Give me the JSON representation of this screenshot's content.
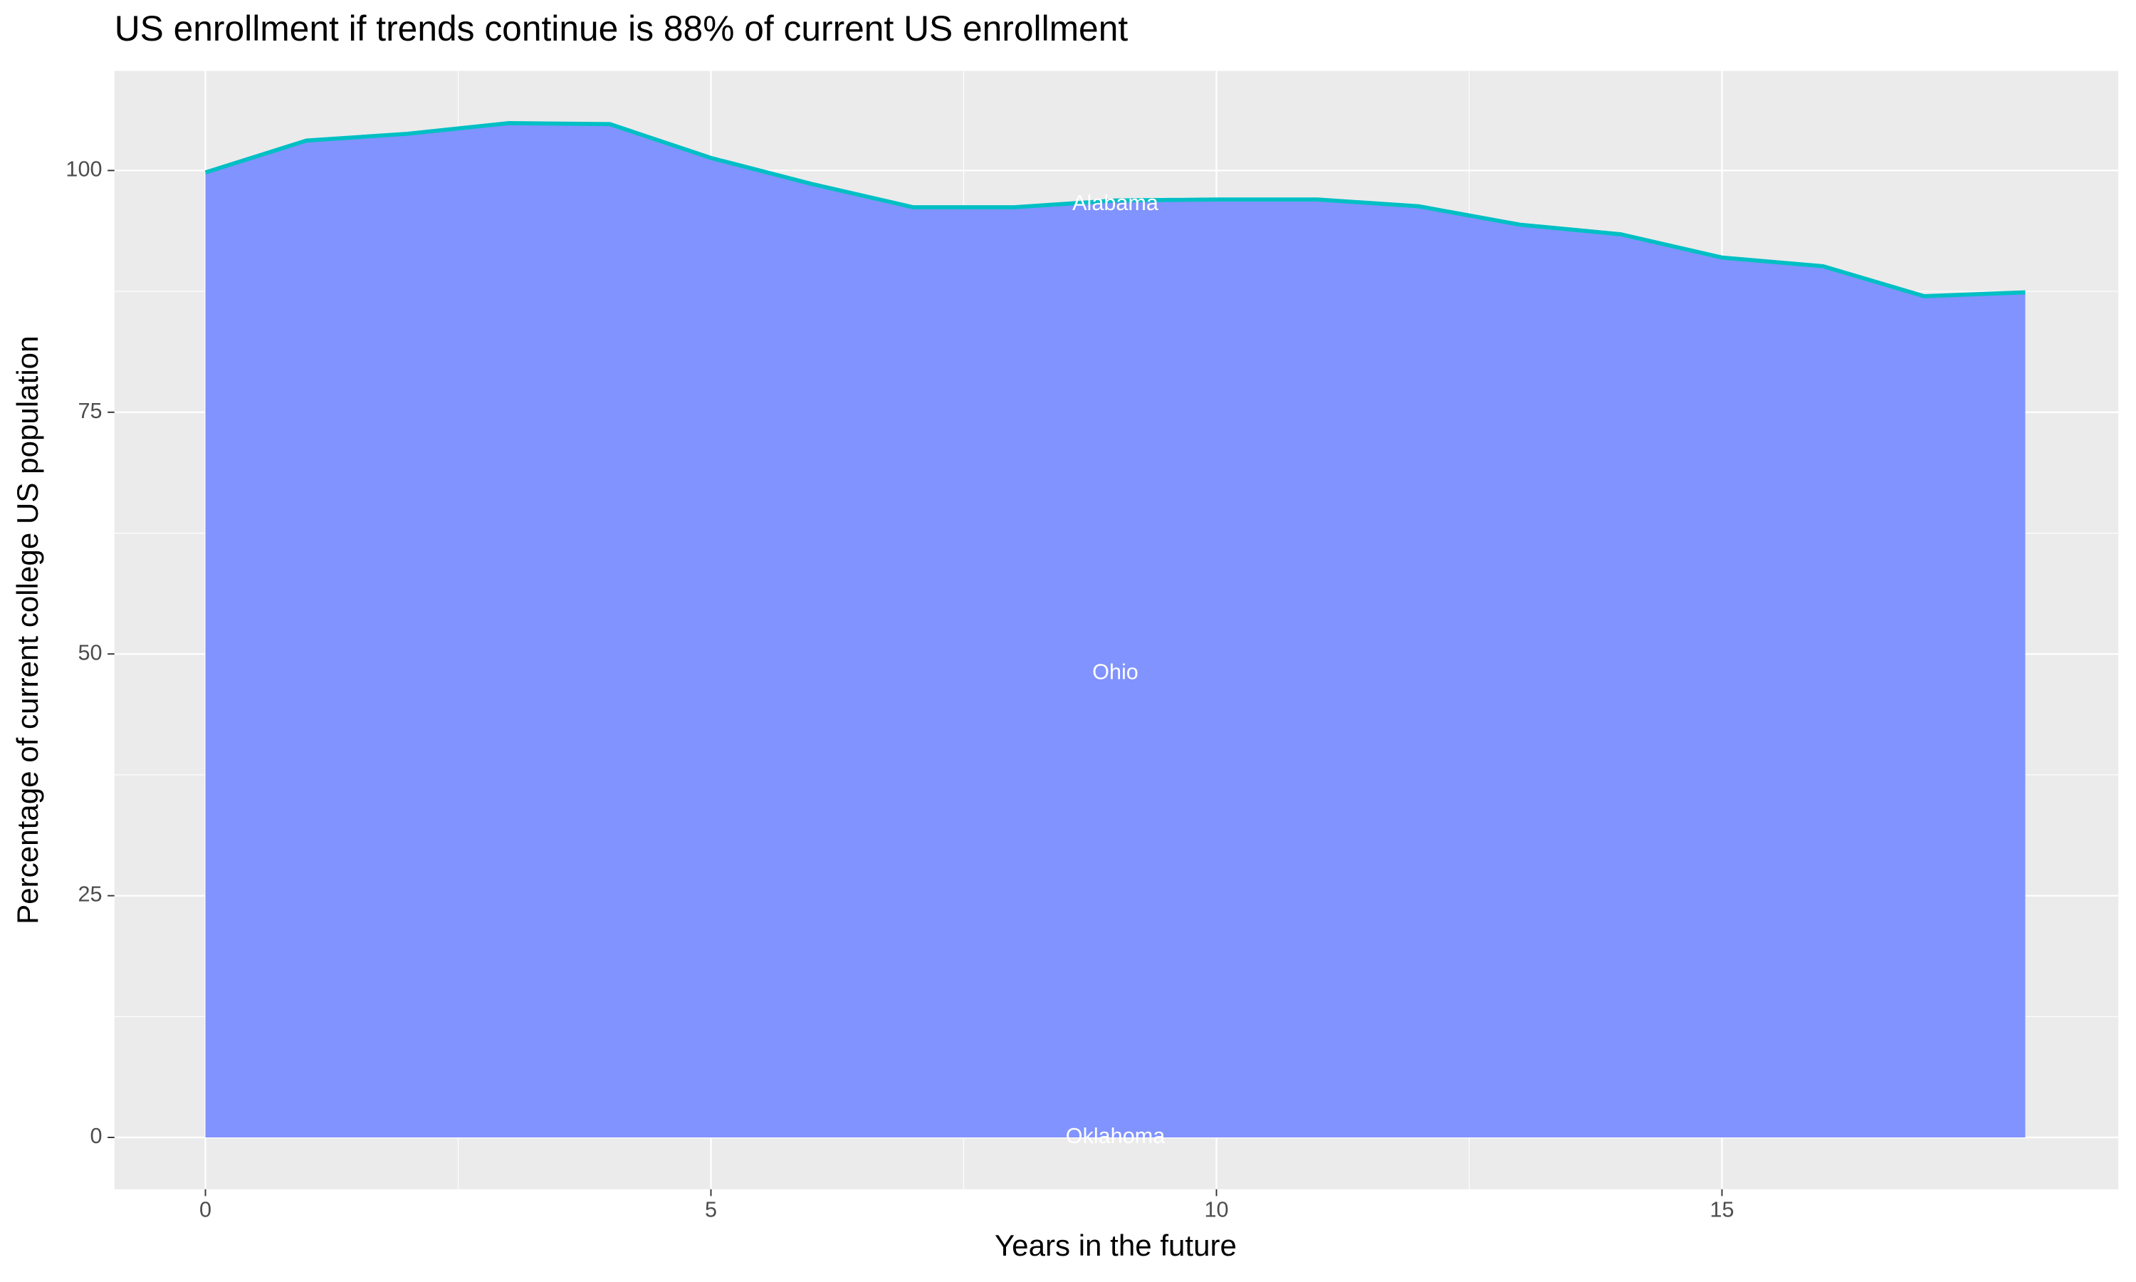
{
  "chart_data": {
    "type": "area",
    "title": "US enrollment if trends continue is 88% of current US enrollment",
    "xlabel": "Years in the future",
    "ylabel": "Percentage of current college US population",
    "x": [
      0,
      1,
      2,
      3,
      4,
      5,
      6,
      7,
      8,
      9,
      10,
      11,
      12,
      13,
      14,
      15,
      16,
      17,
      18
    ],
    "series": [
      {
        "color": "#8193fe",
        "line_color": "#00bfc4",
        "values": [
          99.8,
          103.1,
          103.8,
          104.9,
          104.8,
          101.3,
          98.6,
          96.2,
          96.2,
          96.9,
          97.0,
          97.0,
          96.3,
          94.4,
          93.4,
          91.0,
          90.1,
          87.0,
          87.4
        ]
      }
    ],
    "annotations": [
      {
        "text": "Alabama",
        "x": 9,
        "y": 96.5
      },
      {
        "text": "Ohio",
        "x": 9,
        "y": 48
      },
      {
        "text": "Oklahoma",
        "x": 9,
        "y": 0
      }
    ],
    "xlim": [
      -0.9,
      18.92
    ],
    "ylim": [
      -5.36,
      110.3
    ],
    "xticks": [
      0,
      5,
      10,
      15
    ],
    "yticks": [
      0,
      25,
      50,
      75,
      100
    ],
    "grid": true,
    "minor_grid": true
  }
}
